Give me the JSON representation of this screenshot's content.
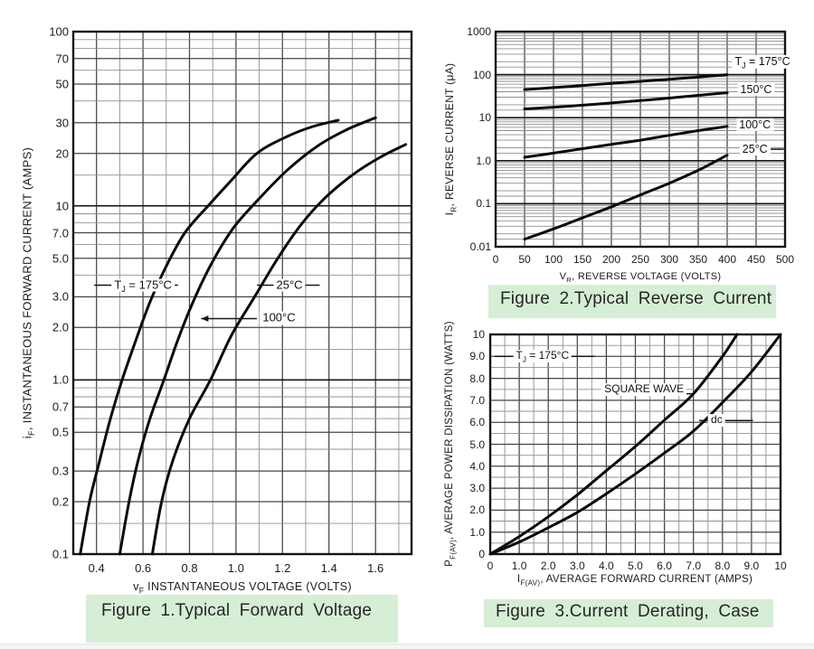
{
  "theme": {
    "background": "#ffffff",
    "caption_bg": "#d6eed6",
    "curve_color": "#0b0b0b",
    "text_color": "#1a1a1a"
  },
  "chart_data": [
    {
      "id": "figure-1",
      "type": "line",
      "title": "Figure 1.Typical Forward Voltage",
      "xlabel": {
        "pre": "v",
        "sub": "F",
        "post": " INSTANTANEOUS VOLTAGE (VOLTS)"
      },
      "ylabel": {
        "pre": "i",
        "sub": "F",
        "post": ", INSTANTANEOUS FORWARD CURRENT (AMPS)"
      },
      "xscale": "linear",
      "yscale": "log",
      "xlim": [
        0.3,
        1.755
      ],
      "ylim": [
        0.1,
        100
      ],
      "grid": "on",
      "xticks": {
        "values": [
          0.4,
          0.6,
          0.8,
          1.0,
          1.2,
          1.4,
          1.6
        ],
        "labels": [
          "0.4",
          "0.6",
          "0.8",
          "1.0",
          "1.2",
          "1.4",
          "1.6"
        ]
      },
      "yticks": {
        "values": [
          100,
          70,
          50,
          30,
          20,
          10,
          7,
          5,
          3,
          2,
          1,
          0.7,
          0.5,
          0.3,
          0.2,
          0.1
        ],
        "labels": [
          "100",
          "70",
          "50",
          "30",
          "20",
          "10",
          "7.0",
          "5.0",
          "3.0",
          "2.0",
          "1.0",
          "0.7",
          "0.5",
          "0.3",
          "0.2",
          "0.1"
        ]
      },
      "series": [
        {
          "name": "TJ = 175°C",
          "points": [
            [
              0.33,
              0.1
            ],
            [
              0.37,
              0.2
            ],
            [
              0.41,
              0.33
            ],
            [
              0.46,
              0.6
            ],
            [
              0.51,
              1.0
            ],
            [
              0.57,
              1.7
            ],
            [
              0.63,
              2.8
            ],
            [
              0.7,
              4.5
            ],
            [
              0.78,
              7.0
            ],
            [
              0.88,
              10
            ],
            [
              0.98,
              14
            ],
            [
              1.09,
              20
            ],
            [
              1.22,
              25
            ],
            [
              1.33,
              28.5
            ],
            [
              1.44,
              31
            ]
          ]
        },
        {
          "name": "100°C",
          "points": [
            [
              0.5,
              0.1
            ],
            [
              0.54,
              0.2
            ],
            [
              0.58,
              0.35
            ],
            [
              0.63,
              0.6
            ],
            [
              0.69,
              1.0
            ],
            [
              0.75,
              1.7
            ],
            [
              0.82,
              2.9
            ],
            [
              0.9,
              4.8
            ],
            [
              0.99,
              7.5
            ],
            [
              1.1,
              11
            ],
            [
              1.22,
              16
            ],
            [
              1.35,
              22
            ],
            [
              1.48,
              27.5
            ],
            [
              1.6,
              32
            ]
          ]
        },
        {
          "name": "25°C",
          "points": [
            [
              0.64,
              0.1
            ],
            [
              0.68,
              0.2
            ],
            [
              0.73,
              0.35
            ],
            [
              0.8,
              0.6
            ],
            [
              0.89,
              1.0
            ],
            [
              0.98,
              1.8
            ],
            [
              1.08,
              3.0
            ],
            [
              1.18,
              5.0
            ],
            [
              1.28,
              7.8
            ],
            [
              1.38,
              11
            ],
            [
              1.5,
              15
            ],
            [
              1.62,
              19
            ],
            [
              1.73,
              22.5
            ]
          ]
        }
      ],
      "annotations": [
        {
          "id": "tj-175c",
          "pre": "T",
          "sub": "J",
          "post": " = 175°C",
          "x": 0.6,
          "y": 3.5,
          "lines": [
            {
              "x1": 0.39,
              "y1": 3.5,
              "x2": 0.75,
              "y2": 3.5
            }
          ]
        },
        {
          "id": "25c",
          "pre": "25°C",
          "sub": "",
          "post": "",
          "x": 1.23,
          "y": 3.5,
          "lines": [
            {
              "x1": 1.09,
              "y1": 3.5,
              "x2": 1.36,
              "y2": 3.5
            }
          ]
        },
        {
          "id": "100c",
          "pre": "100°C",
          "sub": "",
          "post": "",
          "x": 1.185,
          "y": 2.25,
          "lines": [
            {
              "x1": 1.09,
              "y1": 2.25,
              "x2": 0.85,
              "y2": 2.25,
              "arrow": true
            }
          ]
        }
      ]
    },
    {
      "id": "figure-2",
      "type": "line",
      "title": "Figure 2.Typical Reverse Current",
      "xlabel": {
        "pre": "V",
        "sub": "R",
        "post": ", REVERSE VOLTAGE (VOLTS)"
      },
      "ylabel": {
        "pre": "I",
        "sub": "R",
        "post": ", REVERSE CURRENT (μA)"
      },
      "xscale": "linear",
      "yscale": "log",
      "xlim": [
        0,
        500
      ],
      "ylim": [
        0.01,
        1000
      ],
      "grid": "on",
      "xticks": {
        "values": [
          0,
          50,
          100,
          150,
          200,
          250,
          300,
          350,
          400,
          450,
          500
        ],
        "labels": [
          "0",
          "50",
          "100",
          "150",
          "200",
          "250",
          "300",
          "350",
          "400",
          "450",
          "500"
        ]
      },
      "yticks": {
        "values": [
          1000,
          100,
          10,
          1,
          0.1,
          0.01
        ],
        "labels": [
          "1000",
          "100",
          "10",
          "1.0",
          "0.1",
          "0.01"
        ]
      },
      "series": [
        {
          "name": "TJ = 175°C",
          "points": [
            [
              50,
              45
            ],
            [
              100,
              50
            ],
            [
              150,
              56
            ],
            [
              200,
              63
            ],
            [
              250,
              70
            ],
            [
              300,
              78
            ],
            [
              350,
              88
            ],
            [
              400,
              100
            ]
          ]
        },
        {
          "name": "150°C",
          "points": [
            [
              50,
              16
            ],
            [
              100,
              17.5
            ],
            [
              150,
              19.5
            ],
            [
              200,
              22
            ],
            [
              250,
              25
            ],
            [
              300,
              28.5
            ],
            [
              350,
              33
            ],
            [
              400,
              38
            ]
          ]
        },
        {
          "name": "100°C",
          "points": [
            [
              50,
              1.2
            ],
            [
              100,
              1.5
            ],
            [
              150,
              1.9
            ],
            [
              200,
              2.4
            ],
            [
              250,
              3.0
            ],
            [
              300,
              3.9
            ],
            [
              350,
              5.0
            ],
            [
              400,
              6.3
            ]
          ]
        },
        {
          "name": "25°C",
          "points": [
            [
              50,
              0.015
            ],
            [
              100,
              0.026
            ],
            [
              150,
              0.047
            ],
            [
              200,
              0.085
            ],
            [
              250,
              0.16
            ],
            [
              300,
              0.3
            ],
            [
              350,
              0.6
            ],
            [
              400,
              1.35
            ]
          ]
        }
      ],
      "annotations": [
        {
          "id": "tj-175c",
          "pre": "T",
          "sub": "J",
          "post": " = 175°C",
          "x": 461,
          "y": 200,
          "lines": []
        },
        {
          "id": "150c",
          "pre": "150°C",
          "sub": "",
          "post": "",
          "x": 450,
          "y": 45,
          "lines": []
        },
        {
          "id": "100c",
          "pre": "100°C",
          "sub": "",
          "post": "",
          "x": 448,
          "y": 6.9,
          "lines": []
        },
        {
          "id": "25c",
          "pre": "25°C",
          "sub": "",
          "post": "",
          "x": 448,
          "y": 1.85,
          "lines": [
            {
              "x1": 475,
              "y1": 1.85,
              "x2": 498,
              "y2": 1.85
            }
          ]
        }
      ]
    },
    {
      "id": "figure-3",
      "type": "line",
      "title": "Figure 3.Current Derating, Case",
      "xlabel": {
        "pre": "I",
        "sub": "F(AV)",
        "post": ", AVERAGE FORWARD CURRENT (AMPS)"
      },
      "ylabel": {
        "pre": "P",
        "sub": "F(AV)",
        "post": ", AVERAGE POWER DISSIPATION (WATTS)"
      },
      "xscale": "linear",
      "yscale": "linear",
      "xlim": [
        0,
        10
      ],
      "ylim": [
        0,
        10
      ],
      "grid": "on",
      "xticks": {
        "values": [
          0,
          1,
          2,
          3,
          4,
          5,
          6,
          7,
          8,
          9,
          10
        ],
        "labels": [
          "0",
          "1.0",
          "2.0",
          "3.0",
          "4.0",
          "5.0",
          "6.0",
          "7.0",
          "8.0",
          "9.0",
          "10"
        ]
      },
      "yticks": {
        "values": [
          10,
          9,
          8,
          7,
          6,
          5,
          4,
          3,
          2,
          1,
          0
        ],
        "labels": [
          "10",
          "9.0",
          "8.0",
          "7.0",
          "6.0",
          "5.0",
          "4.0",
          "3.0",
          "2.0",
          "1.0",
          "0"
        ]
      },
      "series": [
        {
          "name": "SQUARE WAVE",
          "points": [
            [
              0,
              0
            ],
            [
              1,
              0.8
            ],
            [
              2,
              1.7
            ],
            [
              3,
              2.7
            ],
            [
              4,
              3.8
            ],
            [
              5,
              4.9
            ],
            [
              6,
              6.1
            ],
            [
              7,
              7.3
            ],
            [
              8,
              9.0
            ],
            [
              8.5,
              10
            ]
          ]
        },
        {
          "name": "dc",
          "points": [
            [
              0,
              0
            ],
            [
              1,
              0.55
            ],
            [
              2,
              1.2
            ],
            [
              3,
              1.9
            ],
            [
              4,
              2.75
            ],
            [
              5,
              3.65
            ],
            [
              6,
              4.6
            ],
            [
              7,
              5.6
            ],
            [
              8,
              6.9
            ],
            [
              9,
              8.3
            ],
            [
              10,
              10
            ]
          ]
        }
      ],
      "annotations": [
        {
          "id": "tj-175c",
          "pre": "T",
          "sub": "J",
          "post": " = 175°C",
          "x": 1.8,
          "y": 9,
          "lines": [
            {
              "x1": 0.15,
              "y1": 9,
              "x2": 3.6,
              "y2": 9
            }
          ]
        },
        {
          "id": "square-wave",
          "pre": "SQUARE WAVE",
          "sub": "",
          "post": "",
          "x": 5.3,
          "y": 7.5,
          "lines": [
            {
              "x1": 6.5,
              "y1": 7.3,
              "x2": 6.95,
              "y2": 7.3
            }
          ]
        },
        {
          "id": "dc",
          "pre": "dc",
          "sub": "",
          "post": "",
          "x": 7.8,
          "y": 6.08,
          "lines": [
            {
              "x1": 7.2,
              "y1": 6.08,
              "x2": 9.05,
              "y2": 6.08
            }
          ]
        }
      ]
    }
  ]
}
